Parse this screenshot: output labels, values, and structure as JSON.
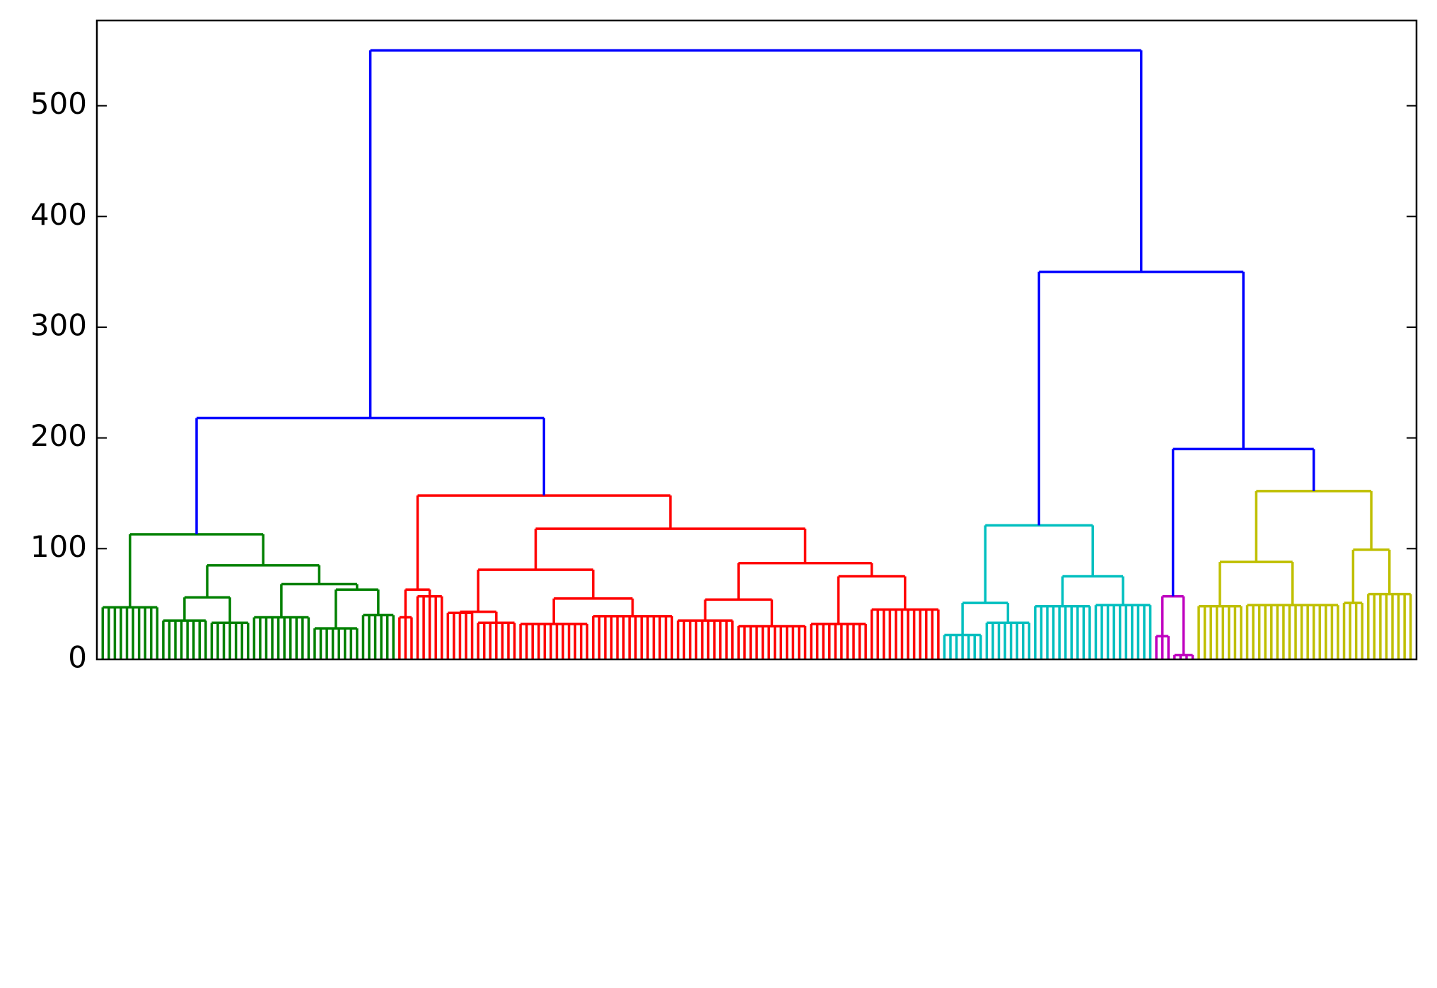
{
  "chart_data": {
    "type": "dendrogram",
    "ylim": [
      0,
      577
    ],
    "yticks": [
      0,
      100,
      200,
      300,
      400,
      500
    ],
    "tree": {
      "height": 550,
      "color": "#0000ff",
      "children": [
        {
          "height": 218,
          "children": [
            {
              "height": 113,
              "color": "#008000",
              "children": [
                {
                  "height": 47,
                  "leaves": 10
                },
                {
                  "height": 85,
                  "children": [
                    {
                      "height": 56,
                      "children": [
                        {
                          "height": 35,
                          "leaves": 8
                        },
                        {
                          "height": 33,
                          "leaves": 7
                        }
                      ]
                    },
                    {
                      "height": 68,
                      "children": [
                        {
                          "height": 38,
                          "leaves": 10
                        },
                        {
                          "height": 63,
                          "children": [
                            {
                              "height": 28,
                              "leaves": 8
                            },
                            {
                              "height": 40,
                              "leaves": 6
                            }
                          ]
                        }
                      ]
                    }
                  ]
                }
              ]
            },
            {
              "height": 148,
              "color": "#ff0000",
              "children": [
                {
                  "height": 63,
                  "children": [
                    {
                      "height": 38,
                      "leaves": 3
                    },
                    {
                      "height": 57,
                      "leaves": 5
                    }
                  ]
                },
                {
                  "height": 118,
                  "children": [
                    {
                      "height": 81,
                      "children": [
                        {
                          "height": 43,
                          "children": [
                            {
                              "height": 42,
                              "leaves": 5
                            },
                            {
                              "height": 33,
                              "leaves": 7
                            }
                          ]
                        },
                        {
                          "height": 55,
                          "children": [
                            {
                              "height": 32,
                              "leaves": 12
                            },
                            {
                              "height": 39,
                              "leaves": 14
                            }
                          ]
                        }
                      ]
                    },
                    {
                      "height": 87,
                      "children": [
                        {
                          "height": 54,
                          "children": [
                            {
                              "height": 35,
                              "leaves": 10
                            },
                            {
                              "height": 30,
                              "leaves": 12
                            }
                          ]
                        },
                        {
                          "height": 75,
                          "children": [
                            {
                              "height": 32,
                              "leaves": 10
                            },
                            {
                              "height": 45,
                              "leaves": 12
                            }
                          ]
                        }
                      ]
                    }
                  ]
                }
              ]
            }
          ]
        },
        {
          "height": 350,
          "children": [
            {
              "height": 121,
              "color": "#00bfbf",
              "children": [
                {
                  "height": 51,
                  "children": [
                    {
                      "height": 22,
                      "leaves": 7
                    },
                    {
                      "height": 33,
                      "leaves": 8
                    }
                  ]
                },
                {
                  "height": 75,
                  "children": [
                    {
                      "height": 48,
                      "leaves": 10
                    },
                    {
                      "height": 49,
                      "leaves": 10
                    }
                  ]
                }
              ]
            },
            {
              "height": 190,
              "children": [
                {
                  "height": 57,
                  "color": "#bf00bf",
                  "children": [
                    {
                      "height": 21,
                      "leaves": 3
                    },
                    {
                      "height": 4,
                      "leaves": 4
                    }
                  ]
                },
                {
                  "height": 152,
                  "color": "#bfbf00",
                  "children": [
                    {
                      "height": 88,
                      "children": [
                        {
                          "height": 48,
                          "leaves": 8
                        },
                        {
                          "height": 49,
                          "leaves": 16
                        }
                      ]
                    },
                    {
                      "height": 99,
                      "children": [
                        {
                          "height": 51,
                          "leaves": 4
                        },
                        {
                          "height": 59,
                          "leaves": 8
                        }
                      ]
                    }
                  ]
                }
              ]
            }
          ]
        }
      ]
    }
  }
}
